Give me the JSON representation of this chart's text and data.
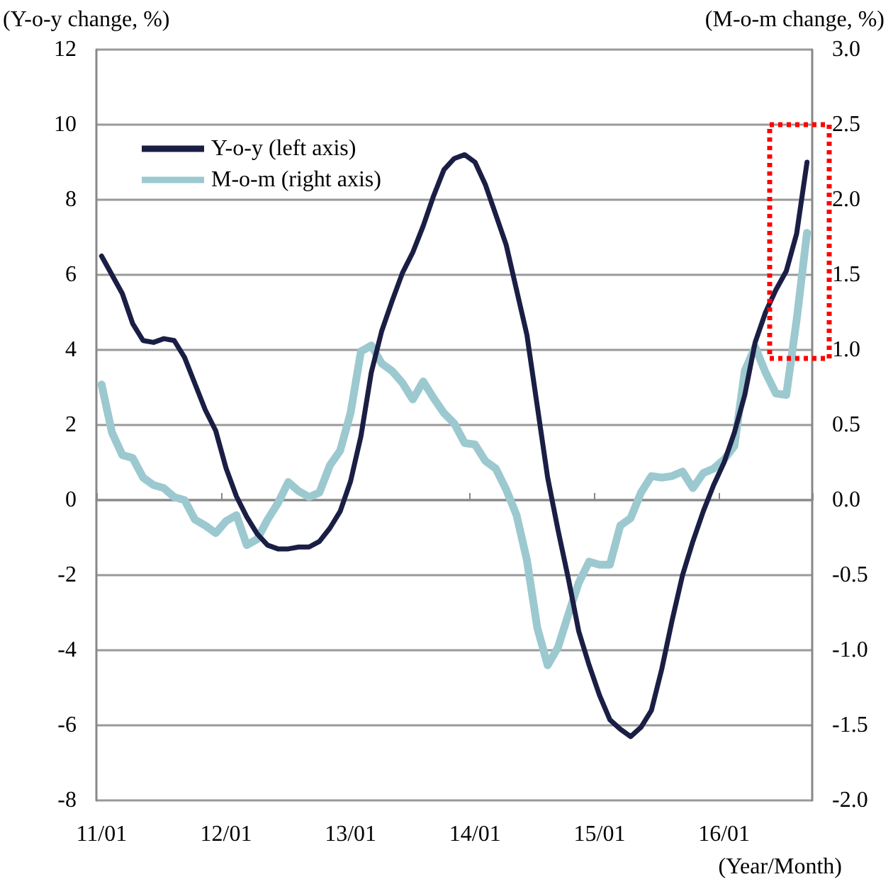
{
  "chart_data": {
    "type": "line",
    "ylabel": "(Y-o-y change, %)",
    "y2label": "(M-o-m change, %)",
    "xlabel": "(Year/Month)",
    "categories": [
      "11/01",
      null,
      null,
      null,
      null,
      null,
      null,
      null,
      null,
      null,
      null,
      null,
      "12/01",
      null,
      null,
      null,
      null,
      null,
      null,
      null,
      null,
      null,
      null,
      null,
      "13/01",
      null,
      null,
      null,
      null,
      null,
      null,
      null,
      null,
      null,
      null,
      null,
      "14/01",
      null,
      null,
      null,
      null,
      null,
      null,
      null,
      null,
      null,
      null,
      null,
      "15/01",
      null,
      null,
      null,
      null,
      null,
      null,
      null,
      null,
      null,
      null,
      null,
      "16/01",
      null,
      null,
      null,
      null,
      null,
      null,
      null,
      null
    ],
    "series": [
      {
        "name": "Y-o-y (left axis)",
        "color": "#1b1e44",
        "values": [
          6.5,
          6.0,
          5.5,
          4.7,
          4.25,
          4.2,
          4.3,
          4.25,
          3.8,
          3.1,
          2.4,
          1.85,
          0.85,
          0.1,
          -0.45,
          -0.9,
          -1.2,
          -1.3,
          -1.3,
          -1.25,
          -1.25,
          -1.1,
          -0.75,
          -0.3,
          0.5,
          1.7,
          3.4,
          4.5,
          5.3,
          6.05,
          6.6,
          7.3,
          8.1,
          8.8,
          9.1,
          9.2,
          9.0,
          8.4,
          7.6,
          6.8,
          5.6,
          4.4,
          2.5,
          0.6,
          -0.8,
          -2.1,
          -3.5,
          -4.4,
          -5.2,
          -5.85,
          -6.1,
          -6.3,
          -6.05,
          -5.6,
          -4.5,
          -3.2,
          -2.0,
          -1.1,
          -0.3,
          0.4,
          1.0,
          1.8,
          2.8,
          4.2,
          5.0,
          5.6,
          6.1,
          7.1,
          9.0
        ]
      },
      {
        "name": "M-o-m (right axis)",
        "color": "#9bc9cf",
        "axis": "y2",
        "values": [
          0.77,
          0.45,
          0.3,
          0.28,
          0.15,
          0.1,
          0.08,
          0.02,
          0.0,
          -0.13,
          -0.17,
          -0.22,
          -0.14,
          -0.1,
          -0.3,
          -0.26,
          -0.13,
          -0.02,
          0.12,
          0.06,
          0.02,
          0.05,
          0.23,
          0.33,
          0.58,
          0.99,
          1.03,
          0.91,
          0.86,
          0.78,
          0.67,
          0.79,
          0.68,
          0.58,
          0.51,
          0.38,
          0.37,
          0.26,
          0.21,
          0.07,
          -0.1,
          -0.4,
          -0.85,
          -1.1,
          -0.98,
          -0.76,
          -0.55,
          -0.41,
          -0.43,
          -0.43,
          -0.17,
          -0.12,
          0.05,
          0.16,
          0.15,
          0.16,
          0.19,
          0.08,
          0.18,
          0.21,
          0.27,
          0.36,
          0.86,
          1.02,
          0.85,
          0.71,
          0.7,
          1.2,
          1.78
        ]
      }
    ],
    "ylim": [
      -8,
      12
    ],
    "yticks": [
      -8,
      -6,
      -4,
      -2,
      0,
      2,
      4,
      6,
      8,
      10,
      12
    ],
    "y2lim": [
      -2,
      3
    ],
    "y2ticks": [
      {
        "value": -2,
        "label": "-2.0"
      },
      {
        "value": -1.5,
        "label": "-1.5"
      },
      {
        "value": -1,
        "label": "-1.0"
      },
      {
        "value": -0.5,
        "label": "-0.5"
      },
      {
        "value": 0,
        "label": "0.0"
      },
      {
        "value": 0.5,
        "label": "0.5"
      },
      {
        "value": 1,
        "label": "1.0"
      },
      {
        "value": 1.5,
        "label": "1.5"
      },
      {
        "value": 2,
        "label": "2.0"
      },
      {
        "value": 2.5,
        "label": "2.5"
      },
      {
        "value": 3,
        "label": "3.0"
      }
    ],
    "grid": "y",
    "legend": "top left",
    "marker": "none",
    "line_style": "solid"
  }
}
